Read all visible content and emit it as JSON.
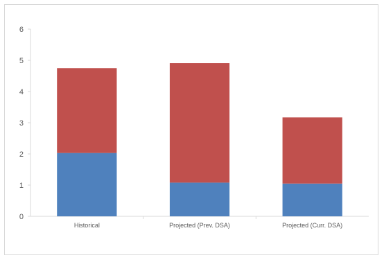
{
  "chart_data": {
    "type": "bar",
    "stacked": true,
    "categories": [
      "Historical",
      "Projected (Prev. DSA)",
      "Projected (Curr. DSA)"
    ],
    "series": [
      {
        "values": [
          2.03,
          1.08,
          1.05
        ],
        "color": "#4f81bd"
      },
      {
        "values": [
          2.72,
          3.83,
          2.12
        ],
        "color": "#c0504d"
      }
    ],
    "ylim": [
      0,
      6
    ],
    "yticks": [
      0,
      1,
      2,
      3,
      4,
      5,
      6
    ],
    "grid": false,
    "legend": "none",
    "title": "",
    "xlabel": "",
    "ylabel": ""
  }
}
